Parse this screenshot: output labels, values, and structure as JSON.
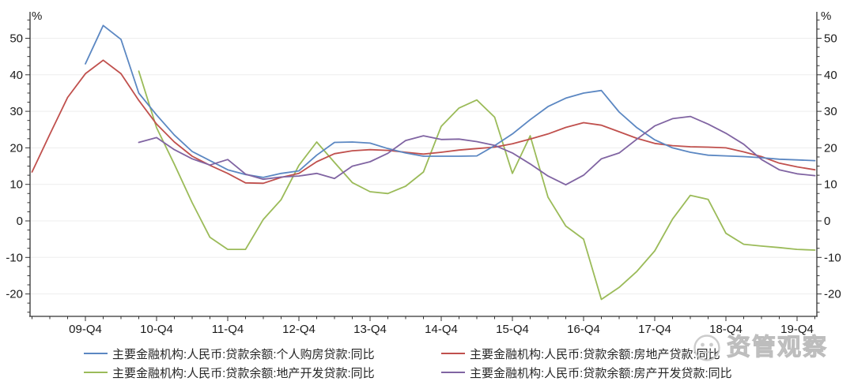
{
  "chart_data": {
    "type": "line",
    "title": "",
    "unit_label": "%",
    "x_axis": {
      "tick_labels": [
        "09-Q4",
        "10-Q4",
        "11-Q4",
        "12-Q4",
        "13-Q4",
        "14-Q4",
        "15-Q4",
        "16-Q4",
        "17-Q4",
        "18-Q4",
        "19-Q4"
      ],
      "minor_ticks": "quarterly"
    },
    "y_axis": {
      "unit": "%",
      "ticks": [
        50,
        40,
        30,
        20,
        10,
        0,
        -10,
        -20
      ],
      "minor_step": 2.5,
      "ylim": [
        -27,
        57
      ],
      "grid": true,
      "dual_axis": true
    },
    "legend_position": "bottom",
    "categories": [
      "09-Q1",
      "09-Q2",
      "09-Q3",
      "09-Q4",
      "10-Q1",
      "10-Q2",
      "10-Q3",
      "10-Q4",
      "11-Q1",
      "11-Q2",
      "11-Q3",
      "11-Q4",
      "12-Q1",
      "12-Q2",
      "12-Q3",
      "12-Q4",
      "13-Q1",
      "13-Q2",
      "13-Q3",
      "13-Q4",
      "14-Q1",
      "14-Q2",
      "14-Q3",
      "14-Q4",
      "15-Q1",
      "15-Q2",
      "15-Q3",
      "15-Q4",
      "16-Q1",
      "16-Q2",
      "16-Q3",
      "16-Q4",
      "17-Q1",
      "17-Q2",
      "17-Q3",
      "17-Q4",
      "18-Q1",
      "18-Q2",
      "18-Q3",
      "18-Q4",
      "19-Q1",
      "19-Q2",
      "19-Q3",
      "19-Q4",
      ""
    ],
    "series": [
      {
        "key": "personal-housing-loan",
        "name": "主要金融机构:人民币:贷款余额:个人购房贷款:同比",
        "color": "#5b87c2",
        "values": [
          null,
          null,
          null,
          43.0,
          53.5,
          49.7,
          35.0,
          29.0,
          23.5,
          19.0,
          16.5,
          14.0,
          12.7,
          11.9,
          13.0,
          13.7,
          18.0,
          21.5,
          21.6,
          21.3,
          19.8,
          18.6,
          17.7,
          17.7,
          17.7,
          17.8,
          20.6,
          23.8,
          27.7,
          31.3,
          33.6,
          35.0,
          35.7,
          29.8,
          25.5,
          22.2,
          20.0,
          18.8,
          18.0,
          17.8,
          17.6,
          17.3,
          16.9,
          16.7,
          16.5
        ]
      },
      {
        "key": "real-estate-loan",
        "name": "主要金融机构:人民币:贷款余额:房地产贷款:同比",
        "color": "#c0504d",
        "values": [
          13.4,
          23.7,
          33.8,
          40.3,
          44.0,
          40.3,
          33.0,
          26.5,
          21.6,
          17.7,
          15.2,
          13.0,
          10.4,
          10.3,
          11.9,
          13.0,
          16.2,
          18.4,
          19.2,
          19.5,
          19.3,
          18.8,
          18.3,
          18.8,
          19.4,
          19.8,
          20.2,
          21.1,
          22.4,
          23.8,
          25.6,
          26.9,
          26.2,
          24.4,
          22.6,
          21.2,
          20.6,
          20.3,
          20.2,
          20.0,
          18.9,
          17.6,
          15.8,
          14.8,
          14.0
        ]
      },
      {
        "key": "land-development-loan",
        "name": "主要金融机构:人民币:贷款余额:地产开发贷款:同比",
        "color": "#9bbb59",
        "values": [
          null,
          null,
          null,
          null,
          null,
          null,
          41.0,
          25.5,
          15.5,
          5.0,
          -4.5,
          -7.8,
          -7.8,
          0.4,
          5.8,
          15.2,
          21.6,
          16.0,
          10.5,
          8.0,
          7.5,
          9.5,
          13.4,
          25.9,
          30.9,
          33.1,
          28.4,
          13.0,
          23.3,
          6.5,
          -1.4,
          -5.0,
          -21.5,
          -18.2,
          -13.8,
          -8.2,
          0.5,
          7.0,
          5.9,
          -3.4,
          -6.4,
          -6.9,
          -7.3,
          -7.8,
          -8.0
        ]
      },
      {
        "key": "housing-development-loan",
        "name": "主要金融机构:人民币:贷款余额:房产开发贷款:同比",
        "color": "#8064a2",
        "values": [
          null,
          null,
          null,
          null,
          null,
          null,
          21.5,
          22.8,
          19.5,
          17.0,
          15.3,
          16.8,
          12.8,
          11.4,
          12.0,
          12.3,
          13.0,
          11.6,
          15.0,
          16.2,
          18.5,
          22.0,
          23.3,
          22.3,
          22.4,
          21.7,
          20.7,
          18.6,
          15.6,
          12.3,
          9.9,
          12.5,
          17.0,
          18.6,
          22.4,
          26.0,
          28.0,
          28.6,
          26.5,
          24.0,
          21.0,
          16.8,
          14.0,
          12.9,
          12.4
        ]
      }
    ]
  },
  "watermark": {
    "text": "资管观察",
    "logo": "owl-circle-logo"
  }
}
